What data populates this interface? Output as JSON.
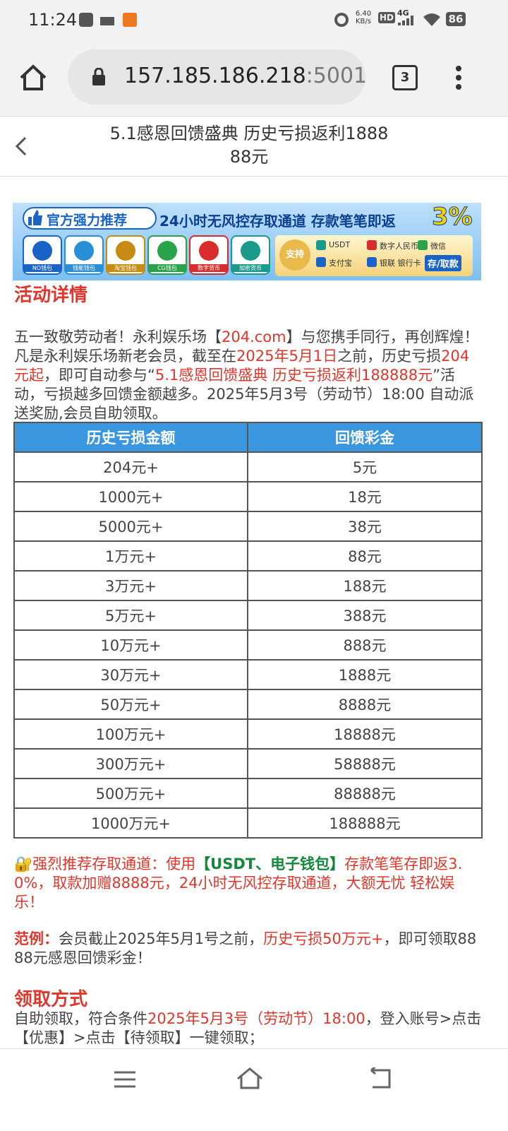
{
  "status_bar": {
    "time": "11:24",
    "net_speed": "6.40",
    "net_unit": "KB/s",
    "hd": "HD",
    "signal": "4G",
    "battery": "86"
  },
  "browser": {
    "url_host": "157.185.186.218",
    "url_rest": ":5001/",
    "tab_count": "3"
  },
  "header": {
    "title": "5.1感恩回馈盛典 历史亏损返利188888元"
  },
  "banner": {
    "badge": "官方强力推荐",
    "slogan": "24小时无风控存取通道 存款笔笔即返",
    "rate": "3%",
    "wallets": [
      "NO钱包",
      "钱能钱包",
      "淘宝钱包",
      "CG钱包",
      "数字货币",
      "加密货币"
    ],
    "support": "支持",
    "methods": [
      "USDT",
      "数字人民币",
      "微信",
      "支付宝",
      "银联 银行卡",
      "存/取款"
    ]
  },
  "details": {
    "heading": "活动详情",
    "paragraph": [
      {
        "text": "五一致敬劳动者！永利娱乐场【",
        "style": "plain"
      },
      {
        "text": "204.com",
        "style": "red"
      },
      {
        "text": "】与您携手同行，再创辉煌！凡是永利娱乐场新老会员，截至在",
        "style": "plain"
      },
      {
        "text": "2025年5月1日",
        "style": "red"
      },
      {
        "text": "之前，历史亏损",
        "style": "plain"
      },
      {
        "text": "204元起",
        "style": "red"
      },
      {
        "text": "，即可自动参与“",
        "style": "plain"
      },
      {
        "text": "5.1感恩回馈盛典  历史亏损返利188888元",
        "style": "red"
      },
      {
        "text": "”活动，亏损越多回馈金额越多。2025年5月3号（劳动节）18:00 自动派送奖励,会员自助领取。",
        "style": "plain"
      }
    ]
  },
  "table": {
    "columns": [
      "历史亏损金额",
      "回馈彩金"
    ],
    "rows": [
      [
        "204元+",
        "5元"
      ],
      [
        "1000元+",
        "18元"
      ],
      [
        "5000元+",
        "38元"
      ],
      [
        "1万元+",
        "88元"
      ],
      [
        "3万元+",
        "188元"
      ],
      [
        "5万元+",
        "388元"
      ],
      [
        "10万元+",
        "888元"
      ],
      [
        "30万元+",
        "1888元"
      ],
      [
        "50万元+",
        "8888元"
      ],
      [
        "100万元+",
        "18888元"
      ],
      [
        "300万元+",
        "58888元"
      ],
      [
        "500万元+",
        "88888元"
      ],
      [
        "1000万元+",
        "188888元"
      ]
    ]
  },
  "notice": [
    {
      "text": "🔐强烈推荐存取通道：使用",
      "style": "red"
    },
    {
      "text": "【USDT、电子钱包】",
      "style": "green"
    },
    {
      "text": "存款笔笔存即返3.0%，取款加赠8888元，24小时无风控存取通道，大额无忧 轻松娱乐！",
      "style": "red"
    }
  ],
  "example": [
    {
      "text": "范例：",
      "style": "red-bold"
    },
    {
      "text": "会员截止2025年5月1号之前，",
      "style": "plain"
    },
    {
      "text": "历史亏损50万元+",
      "style": "red"
    },
    {
      "text": "，即可领取8888元感恩回馈彩金！",
      "style": "plain"
    }
  ],
  "claim": {
    "heading": "领取方式",
    "paragraph": [
      {
        "text": "自助领取，符合条件",
        "style": "plain"
      },
      {
        "text": "2025年5月3号（劳动节）18:00",
        "style": "red"
      },
      {
        "text": "，登入账号>点击【优惠】>点击【待领取】一键领取；",
        "style": "plain"
      }
    ]
  }
}
